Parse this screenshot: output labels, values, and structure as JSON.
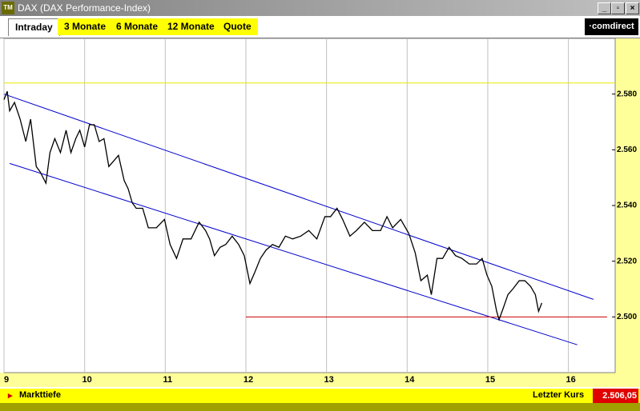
{
  "window": {
    "icon": "TM",
    "title": "DAX (DAX Performance-Index)",
    "logo": "·comdirect"
  },
  "tabs": [
    "Intraday",
    "3 Monate",
    "6 Monate",
    "12 Monate",
    "Quote"
  ],
  "footer": {
    "left": "Markttiefe",
    "price_label": "Letzter Kurs",
    "price": {
      "value": 2506.05,
      "label": "2.506,05"
    }
  },
  "chart_data": {
    "type": "line",
    "xlim": [
      9,
      16.58
    ],
    "ylim": [
      2480,
      2600
    ],
    "xticks": [
      9,
      10,
      11,
      12,
      13,
      14,
      15,
      16
    ],
    "yticks": [
      {
        "value": 2500,
        "label": "2.500"
      },
      {
        "value": 2520,
        "label": "2.520"
      },
      {
        "value": 2540,
        "label": "2.540"
      },
      {
        "value": 2560,
        "label": "2.560"
      },
      {
        "value": 2580,
        "label": "2.580"
      }
    ],
    "grid": true,
    "series": [
      {
        "color": "#000000",
        "x": [
          9.0,
          9.04,
          9.07,
          9.13,
          9.2,
          9.27,
          9.33,
          9.4,
          9.45,
          9.52,
          9.57,
          9.63,
          9.7,
          9.77,
          9.83,
          9.89,
          9.94,
          10.0,
          10.06,
          10.12,
          10.18,
          10.24,
          10.3,
          10.36,
          10.42,
          10.49,
          10.54,
          10.59,
          10.64,
          10.72,
          10.79,
          10.89,
          10.99,
          11.06,
          11.14,
          11.22,
          11.32,
          11.42,
          11.5,
          11.55,
          11.61,
          11.68,
          11.75,
          11.83,
          11.91,
          11.98,
          12.05,
          12.11,
          12.18,
          12.25,
          12.33,
          12.41,
          12.49,
          12.58,
          12.68,
          12.78,
          12.88,
          12.98,
          13.05,
          13.13,
          13.2,
          13.29,
          13.37,
          13.47,
          13.57,
          13.67,
          13.75,
          13.82,
          13.92,
          14.02,
          14.1,
          14.17,
          14.25,
          14.3,
          14.37,
          14.44,
          14.52,
          14.6,
          14.68,
          14.77,
          14.86,
          14.93,
          14.99,
          15.05,
          15.11,
          15.14,
          15.19,
          15.25,
          15.31,
          15.39,
          15.46,
          15.53,
          15.59,
          15.63,
          15.67
        ],
        "values": [
          2578,
          2581,
          2574,
          2577,
          2571,
          2563,
          2571,
          2554,
          2552,
          2548,
          2559,
          2564,
          2559,
          2567,
          2559,
          2564,
          2567,
          2561,
          2569,
          2569,
          2563,
          2564,
          2554,
          2556,
          2558,
          2549,
          2546,
          2541,
          2539,
          2539,
          2532,
          2532,
          2535,
          2526,
          2521,
          2528,
          2528,
          2534,
          2531,
          2528,
          2522,
          2525,
          2526,
          2529,
          2526,
          2522,
          2512,
          2516,
          2521,
          2524,
          2526,
          2525,
          2529,
          2528,
          2529,
          2531,
          2528,
          2536,
          2536,
          2539,
          2535,
          2529,
          2531,
          2534,
          2531,
          2531,
          2536,
          2532,
          2535,
          2530,
          2523,
          2513,
          2515,
          2508,
          2521,
          2521,
          2525,
          2522,
          2521,
          2519,
          2519,
          2521,
          2515,
          2511,
          2502,
          2499,
          2503,
          2508,
          2510,
          2513,
          2513,
          2511,
          2508,
          2502,
          2505
        ]
      }
    ],
    "lines": [
      {
        "color": "#0000cc",
        "x": [
          9.0,
          16.31
        ],
        "values": [
          2580,
          2506.3
        ]
      },
      {
        "color": "#0000cc",
        "x": [
          9.07,
          16.11
        ],
        "values": [
          2555.1,
          2490.0
        ]
      },
      {
        "color": "#cc0000",
        "x": [
          12.0,
          16.48
        ],
        "values": [
          2500,
          2500
        ]
      },
      {
        "color": "#e8e800",
        "x": [
          9.0,
          16.58
        ],
        "values": [
          2584,
          2584
        ]
      }
    ]
  }
}
